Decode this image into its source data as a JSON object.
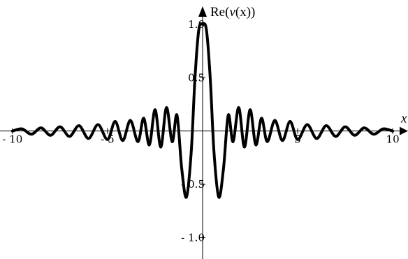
{
  "chart_data": {
    "type": "line",
    "ylabel_prefix": "Re(",
    "ylabel_var": "v",
    "ylabel_arg": "(x))",
    "xlabel": "x",
    "xlim": [
      -10.4,
      10.4
    ],
    "ylim": [
      -1.2,
      1.15
    ],
    "x_ticks": [
      {
        "value": -10,
        "label": "- 10"
      },
      {
        "value": -5,
        "label": "- 5"
      },
      {
        "value": 5,
        "label": "5"
      },
      {
        "value": 10,
        "label": "10"
      }
    ],
    "y_ticks": [
      {
        "value": 1.0,
        "label": "1.0"
      },
      {
        "value": 0.5,
        "label": "0.5"
      },
      {
        "value": -0.5,
        "label": "- 0.5"
      },
      {
        "value": -1.0,
        "label": "- 1.0"
      }
    ],
    "series": [
      {
        "color": "#000000",
        "x": [
          -10.0,
          -9.5,
          -9.0,
          -8.5,
          -8.0,
          -7.5,
          -7.0,
          -6.5,
          -6.0,
          -5.5,
          -5.0,
          -4.6,
          -4.2,
          -3.8,
          -3.4,
          -3.1,
          -2.8,
          -2.5,
          -2.2,
          -1.9,
          -1.6,
          -1.35,
          -1.1,
          -0.85,
          -0.6,
          -0.4,
          -0.2,
          0.0,
          0.2,
          0.4,
          0.6,
          0.85,
          1.1,
          1.35,
          1.6,
          1.9,
          2.2,
          2.5,
          2.8,
          3.1,
          3.4,
          3.8,
          4.2,
          4.6,
          5.0,
          5.5,
          6.0,
          6.5,
          7.0,
          7.5,
          8.0,
          8.5,
          9.0,
          9.5,
          10.0
        ],
        "y": [
          0.0,
          0.02,
          -0.03,
          0.03,
          -0.04,
          0.04,
          -0.05,
          0.05,
          -0.07,
          0.06,
          -0.08,
          0.09,
          -0.09,
          0.1,
          -0.1,
          0.12,
          -0.13,
          0.2,
          -0.15,
          0.22,
          -0.1,
          0.15,
          -0.35,
          -0.62,
          -0.2,
          0.5,
          0.95,
          1.0,
          0.95,
          0.5,
          -0.2,
          -0.62,
          -0.35,
          0.15,
          -0.1,
          0.22,
          -0.15,
          0.2,
          -0.13,
          0.12,
          -0.1,
          0.1,
          -0.09,
          0.09,
          -0.08,
          0.06,
          -0.07,
          0.05,
          -0.05,
          0.04,
          -0.04,
          0.03,
          -0.03,
          0.02,
          0.0
        ]
      }
    ]
  }
}
